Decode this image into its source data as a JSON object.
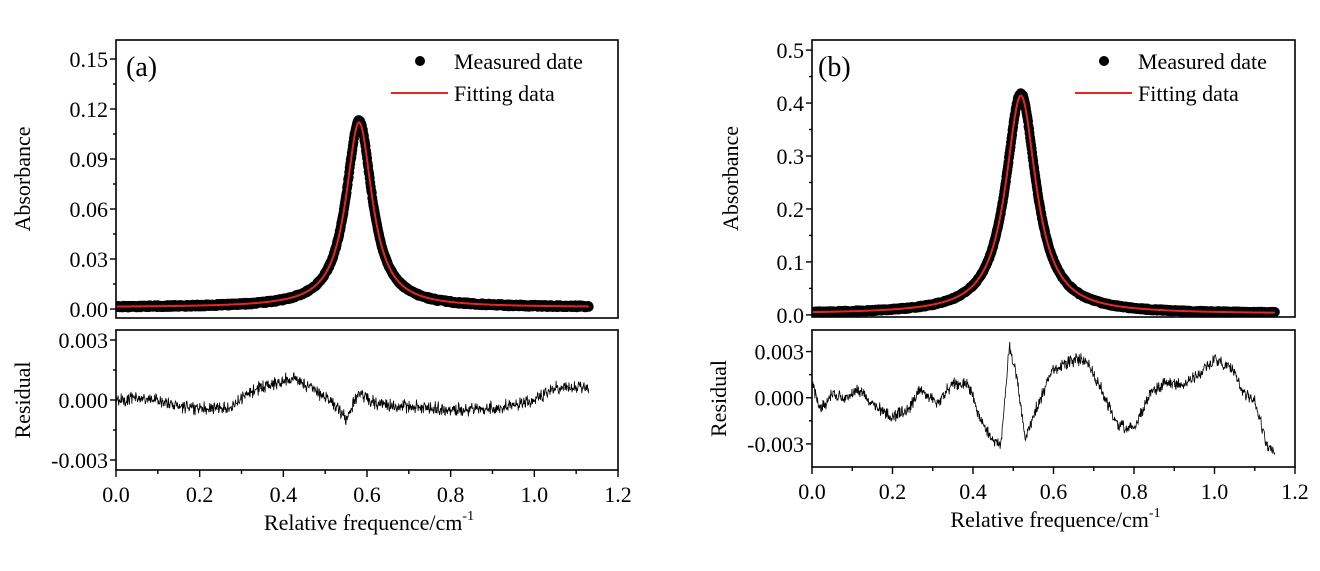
{
  "chart_data": [
    {
      "id": "a",
      "type": "line",
      "panel_label": "(a)",
      "title": "",
      "xlabel": "Relative frequence/cm",
      "xlabel_superscript": "-1",
      "xlim": [
        0.0,
        1.2
      ],
      "x_ticks": [
        "0.0",
        "0.2",
        "0.4",
        "0.6",
        "0.8",
        "1.0",
        "1.2"
      ],
      "x_tick_values": [
        0.0,
        0.2,
        0.4,
        0.6,
        0.8,
        1.0,
        1.2
      ],
      "main": {
        "ylabel": "Absorbance",
        "ylim": [
          -0.0054,
          0.1614
        ],
        "y_ticks": [
          "0.00",
          "0.03",
          "0.06",
          "0.09",
          "0.12",
          "0.15"
        ],
        "y_tick_values": [
          0.0,
          0.03,
          0.06,
          0.09,
          0.12,
          0.15
        ],
        "legend": {
          "position": "top-right",
          "entries": [
            {
              "label": "Measured date",
              "marker": "dot",
              "color": "#000000"
            },
            {
              "label": "Fitting data",
              "marker": "line",
              "color": "#e8251f"
            }
          ]
        },
        "series": [
          {
            "name": "Measured date",
            "style": "scatter",
            "color": "#000000",
            "model": {
              "shape": "lorentzian",
              "center": 0.581,
              "peak": 0.113,
              "hwhm": 0.038,
              "baseline": 0.001
            },
            "x_range": [
              0.0,
              1.13
            ]
          },
          {
            "name": "Fitting data",
            "style": "line",
            "color": "#e8251f",
            "model": {
              "shape": "lorentzian",
              "center": 0.581,
              "peak": 0.112,
              "hwhm": 0.038,
              "baseline": 0.001
            },
            "x_range": [
              0.0,
              1.13
            ]
          }
        ]
      },
      "residual": {
        "ylabel": "Residual",
        "ylim": [
          -0.0035,
          0.0035
        ],
        "y_ticks": [
          "-0.003",
          "0.000",
          "0.003"
        ],
        "y_tick_values": [
          -0.003,
          0.0,
          0.003
        ],
        "x_range": [
          0.0,
          1.13
        ],
        "trend_x": [
          0.0,
          0.05,
          0.1,
          0.15,
          0.2,
          0.25,
          0.28,
          0.32,
          0.36,
          0.42,
          0.47,
          0.52,
          0.55,
          0.58,
          0.62,
          0.7,
          0.8,
          0.9,
          0.95,
          1.0,
          1.05,
          1.1,
          1.13
        ],
        "trend_y": [
          0.0,
          0.0001,
          0.0,
          -0.0003,
          -0.0004,
          -0.0004,
          -0.0003,
          0.0004,
          0.0007,
          0.0011,
          0.0006,
          -0.0002,
          -0.0009,
          0.0004,
          -0.0002,
          -0.0003,
          -0.0005,
          -0.0004,
          -0.0003,
          0.0,
          0.0006,
          0.0007,
          0.0006
        ],
        "noise_amplitude": 0.0004
      }
    },
    {
      "id": "b",
      "type": "line",
      "panel_label": "(b)",
      "title": "",
      "xlabel": "Relative frequence/cm",
      "xlabel_superscript": "-1",
      "xlim": [
        0.0,
        1.2
      ],
      "x_ticks": [
        "0.0",
        "0.2",
        "0.4",
        "0.6",
        "0.8",
        "1.0",
        "1.2"
      ],
      "x_tick_values": [
        0.0,
        0.2,
        0.4,
        0.6,
        0.8,
        1.0,
        1.2
      ],
      "main": {
        "ylabel": "Absorbance",
        "ylim": [
          -0.004,
          0.519
        ],
        "y_ticks": [
          "0.0",
          "0.1",
          "0.2",
          "0.3",
          "0.4",
          "0.5"
        ],
        "y_tick_values": [
          0.0,
          0.1,
          0.2,
          0.3,
          0.4,
          0.5
        ],
        "legend": {
          "position": "top-right",
          "entries": [
            {
              "label": "Measured date",
              "marker": "dot",
              "color": "#000000"
            },
            {
              "label": "Fitting data",
              "marker": "line",
              "color": "#e8251f"
            }
          ]
        },
        "series": [
          {
            "name": "Measured date",
            "style": "scatter",
            "color": "#000000",
            "model": {
              "shape": "lorentzian",
              "center": 0.519,
              "peak": 0.418,
              "hwhm": 0.046,
              "baseline": 0.002
            },
            "x_range": [
              0.0,
              1.15
            ]
          },
          {
            "name": "Fitting data",
            "style": "line",
            "color": "#e8251f",
            "model": {
              "shape": "lorentzian",
              "center": 0.519,
              "peak": 0.414,
              "hwhm": 0.046,
              "baseline": 0.002
            },
            "x_range": [
              0.0,
              1.15
            ]
          }
        ]
      },
      "residual": {
        "ylabel": "Residual",
        "ylim": [
          -0.0045,
          0.0044
        ],
        "y_ticks": [
          "-0.003",
          "0.000",
          "0.003"
        ],
        "y_tick_values": [
          -0.003,
          0.0,
          0.003
        ],
        "x_range": [
          0.0,
          1.15
        ],
        "trend_x": [
          0.0,
          0.02,
          0.05,
          0.08,
          0.12,
          0.16,
          0.2,
          0.24,
          0.27,
          0.31,
          0.35,
          0.39,
          0.42,
          0.45,
          0.47,
          0.49,
          0.51,
          0.53,
          0.56,
          0.6,
          0.64,
          0.68,
          0.72,
          0.76,
          0.8,
          0.84,
          0.88,
          0.92,
          0.96,
          1.0,
          1.04,
          1.07,
          1.1,
          1.13,
          1.15
        ],
        "trend_y": [
          0.001,
          -0.0008,
          0.0002,
          0.0,
          0.0005,
          -0.0006,
          -0.0012,
          -0.0008,
          0.0006,
          -0.0003,
          0.0009,
          0.0008,
          -0.0015,
          -0.0028,
          -0.003,
          0.0034,
          0.0012,
          -0.0028,
          -0.0005,
          0.0018,
          0.0024,
          0.0025,
          0.0005,
          -0.0018,
          -0.002,
          0.0004,
          0.001,
          0.0008,
          0.0015,
          0.0025,
          0.002,
          0.0005,
          -0.0003,
          -0.003,
          -0.0035
        ],
        "noise_amplitude": 0.0005
      }
    }
  ]
}
